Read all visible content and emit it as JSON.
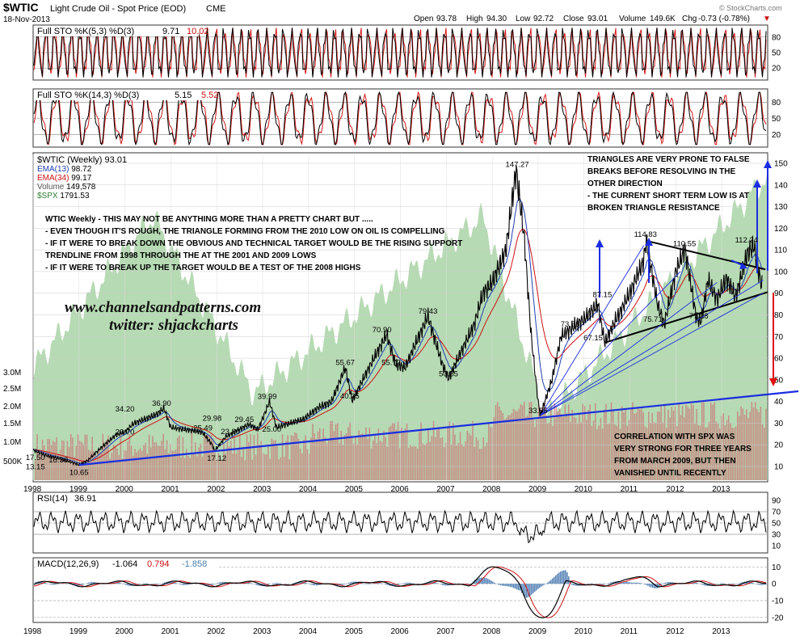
{
  "header": {
    "symbol": "$WTIC",
    "name": "Light Crude Oil - Spot Price (EOD)",
    "exchange": "CME",
    "date": "18-Nov-2013",
    "watermark": "© StockCharts.com",
    "quote": {
      "open_label": "Open",
      "open": "93.78",
      "high_label": "High",
      "high": "94.30",
      "low_label": "Low",
      "low": "92.72",
      "close_label": "Close",
      "close": "93.01",
      "volume_label": "Volume",
      "volume": "149.6K",
      "chg_label": "Chg",
      "chg": "-0.73 (-0.78%)"
    }
  },
  "colors": {
    "price": "#000000",
    "ema_fast": "#1f3fb0",
    "ema_slow": "#cc1111",
    "spx_fill": "#a9d3a6",
    "volume": "#c97a7a",
    "trendline": "#1a2ee0",
    "arrow_up": "#1a2ee0",
    "arrow_down": "#e01010",
    "macd_hist": "#5b86b8",
    "sto_d": "#d21a1a"
  },
  "chart_data": [
    {
      "panel": "sto1",
      "type": "line",
      "title": "Full STO %K(5,3) %D(3)",
      "k_value": "9.71",
      "d_value": "10.02",
      "y_ticks": [
        "80",
        "50",
        "20"
      ],
      "ylim": [
        0,
        100
      ]
    },
    {
      "panel": "sto2",
      "type": "line",
      "title": "Full STO %K(14,3) %D(3)",
      "k_value": "5.15",
      "d_value": "5.52",
      "y_ticks": [
        "80",
        "50",
        "20"
      ],
      "ylim": [
        0,
        100
      ]
    },
    {
      "panel": "price",
      "type": "line",
      "title": "$WTIC (Weekly)",
      "title_value": "93.01",
      "legend": [
        {
          "name": "$WTIC (Weekly)",
          "value": "93.01",
          "color": "#000000"
        },
        {
          "name": "EMA(13)",
          "value": "98.72",
          "color": "#1f3fb0"
        },
        {
          "name": "EMA(34)",
          "value": "99.17",
          "color": "#cc1111"
        },
        {
          "name": "Volume",
          "value": "149,578",
          "color": "#555555"
        },
        {
          "name": "$SPX",
          "value": "1791.53",
          "color": "#2e7d32"
        }
      ],
      "x_ticks": [
        "1998",
        "1999",
        "2000",
        "2001",
        "2002",
        "2003",
        "2004",
        "2005",
        "2006",
        "2007",
        "2008",
        "2009",
        "2010",
        "2011",
        "2012",
        "2013"
      ],
      "y_ticks": [
        "150",
        "140",
        "130",
        "120",
        "110",
        "100",
        "90",
        "80",
        "70",
        "60",
        "50",
        "40",
        "30",
        "20",
        "10"
      ],
      "volume_ticks": [
        "3.0M",
        "2.5M",
        "2.0M",
        "1.5M",
        "1.0M",
        "500K"
      ],
      "ylim": [
        0,
        155
      ],
      "price_points": [
        [
          1998.0,
          17.5
        ],
        [
          1998.3,
          15.0
        ],
        [
          1998.6,
          13.5
        ],
        [
          1998.9,
          11.5
        ],
        [
          1999.0,
          10.65
        ],
        [
          1999.2,
          13.0
        ],
        [
          1999.5,
          19.0
        ],
        [
          1999.8,
          24.5
        ],
        [
          2000.0,
          26.0
        ],
        [
          2000.2,
          30.0
        ],
        [
          2000.45,
          32.0
        ],
        [
          2000.7,
          34.2
        ],
        [
          2000.85,
          36.9
        ],
        [
          2001.0,
          28.0
        ],
        [
          2001.3,
          27.0
        ],
        [
          2001.5,
          26.5
        ],
        [
          2001.7,
          25.49
        ],
        [
          2001.9,
          20.0
        ],
        [
          2001.95,
          17.12
        ],
        [
          2002.2,
          23.8
        ],
        [
          2002.4,
          26.0
        ],
        [
          2002.7,
          29.45
        ],
        [
          2002.9,
          27.0
        ],
        [
          2003.15,
          39.99
        ],
        [
          2003.3,
          28.0
        ],
        [
          2003.6,
          30.0
        ],
        [
          2003.9,
          32.0
        ],
        [
          2004.2,
          37.0
        ],
        [
          2004.5,
          40.0
        ],
        [
          2004.8,
          55.67
        ],
        [
          2004.95,
          40.25
        ],
        [
          2005.3,
          55.0
        ],
        [
          2005.7,
          70.9
        ],
        [
          2005.9,
          57.0
        ],
        [
          2006.1,
          55.72
        ],
        [
          2006.4,
          70.0
        ],
        [
          2006.6,
          79.43
        ],
        [
          2006.9,
          58.0
        ],
        [
          2007.05,
          50.55
        ],
        [
          2007.3,
          62.0
        ],
        [
          2007.6,
          75.0
        ],
        [
          2007.8,
          90.0
        ],
        [
          2008.0,
          95.0
        ],
        [
          2008.3,
          110.0
        ],
        [
          2008.52,
          147.27
        ],
        [
          2008.7,
          115.0
        ],
        [
          2008.85,
          70.0
        ],
        [
          2009.0,
          40.0
        ],
        [
          2009.05,
          33.55
        ],
        [
          2009.3,
          50.0
        ],
        [
          2009.5,
          70.0
        ],
        [
          2009.8,
          75.0
        ],
        [
          2010.0,
          78.0
        ],
        [
          2010.3,
          85.0
        ],
        [
          2010.45,
          67.15
        ],
        [
          2010.7,
          78.0
        ],
        [
          2010.95,
          88.0
        ],
        [
          2011.3,
          105.0
        ],
        [
          2011.35,
          114.83
        ],
        [
          2011.6,
          85.0
        ],
        [
          2011.75,
          75.71
        ],
        [
          2012.0,
          100.0
        ],
        [
          2012.2,
          110.55
        ],
        [
          2012.45,
          78.0
        ],
        [
          2012.55,
          77.28
        ],
        [
          2012.7,
          96.0
        ],
        [
          2012.9,
          87.0
        ],
        [
          2013.1,
          97.0
        ],
        [
          2013.3,
          88.0
        ],
        [
          2013.55,
          108.0
        ],
        [
          2013.7,
          112.24
        ],
        [
          2013.8,
          100.0
        ],
        [
          2013.88,
          93.01
        ]
      ],
      "price_labels": [
        {
          "x": 1998.05,
          "y": 17.5,
          "text": "17.50"
        },
        {
          "x": 1998.55,
          "y": 16.36,
          "text": "16.36"
        },
        {
          "x": 1998.05,
          "y": 13.15,
          "text": "13.15"
        },
        {
          "x": 1999.0,
          "y": 10.65,
          "text": "10.65"
        },
        {
          "x": 2000.0,
          "y": 23.7,
          "text": "23.70"
        },
        {
          "x": 2000.0,
          "y": 34.2,
          "text": "34.20"
        },
        {
          "x": 2000.8,
          "y": 36.9,
          "text": "36.90"
        },
        {
          "x": 2001.7,
          "y": 25.49,
          "text": "25.49"
        },
        {
          "x": 2001.9,
          "y": 29.98,
          "text": "29.98"
        },
        {
          "x": 2002.0,
          "y": 17.12,
          "text": "17.12"
        },
        {
          "x": 2002.3,
          "y": 23.8,
          "text": "23.80"
        },
        {
          "x": 2002.6,
          "y": 29.45,
          "text": "29.45"
        },
        {
          "x": 2003.1,
          "y": 39.99,
          "text": "39.99"
        },
        {
          "x": 2003.2,
          "y": 25.0,
          "text": "25.00"
        },
        {
          "x": 2004.9,
          "y": 40.25,
          "text": "40.25"
        },
        {
          "x": 2004.8,
          "y": 55.67,
          "text": "55.67"
        },
        {
          "x": 2005.8,
          "y": 55.72,
          "text": "55.72"
        },
        {
          "x": 2005.6,
          "y": 70.9,
          "text": "70.90"
        },
        {
          "x": 2006.6,
          "y": 79.43,
          "text": "79.43"
        },
        {
          "x": 2007.05,
          "y": 50.55,
          "text": "50.55"
        },
        {
          "x": 2008.5,
          "y": 147.27,
          "text": "147.27"
        },
        {
          "x": 2009.0,
          "y": 33.55,
          "text": "33.55"
        },
        {
          "x": 2009.7,
          "y": 73.38,
          "text": "73.38"
        },
        {
          "x": 2010.2,
          "y": 67.15,
          "text": "67.15"
        },
        {
          "x": 2010.4,
          "y": 87.15,
          "text": "87.15"
        },
        {
          "x": 2011.3,
          "y": 114.83,
          "text": "114.83"
        },
        {
          "x": 2011.5,
          "y": 75.71,
          "text": "75.71"
        },
        {
          "x": 2012.15,
          "y": 110.55,
          "text": "110.55"
        },
        {
          "x": 2012.5,
          "y": 77.28,
          "text": "77.28"
        },
        {
          "x": 2013.5,
          "y": 112.24,
          "text": "112.24"
        }
      ]
    },
    {
      "panel": "rsi",
      "type": "line",
      "title": "RSI(14)",
      "value": "36.91",
      "y_ticks": [
        "90",
        "70",
        "50",
        "30",
        "10"
      ],
      "ylim": [
        0,
        100
      ]
    },
    {
      "panel": "macd",
      "type": "line",
      "title": "MACD(12,26,9)",
      "macd_value": "-1.064",
      "signal_value": "0.794",
      "hist_value": "-1.858",
      "y_ticks": [
        "10",
        "0",
        "-10",
        "-20"
      ],
      "ylim": [
        -22,
        14
      ],
      "x_ticks": [
        "1998",
        "1999",
        "2000",
        "2001",
        "2002",
        "2003",
        "2004",
        "2005",
        "2006",
        "2007",
        "2008",
        "2009",
        "2010",
        "2011",
        "2012",
        "2013"
      ]
    }
  ],
  "annotations": {
    "intro": [
      "WTIC Weekly - THIS MAY NOT BE ANYTHING MORE THAN A PRETTY CHART BUT .....",
      "- EVEN THOUGH IT'S ROUGH, THE TRIANGLE FORMING FROM THE 2010 LOW ON OIL IS COMPELLING",
      "- IF IT WERE TO BREAK DOWN THE OBVIOUS AND TECHNICAL TARGET WOULD BE THE RISING SUPPORT",
      "TRENDLINE FROM 1998 THROUGH THE AT THE 2001 AND 2009 LOWS",
      "- IF IT WERE TO BREAK UP THE TARGET WOULD BE A TEST OF THE 2008 HIGHS"
    ],
    "triangles": [
      "TRIANGLES ARE VERY PRONE TO FALSE",
      "BREAKS BEFORE RESOLVING IN THE",
      "OTHER DIRECTION",
      "- THE CURRENT SHORT TERM LOW IS AT",
      "BROKEN TRIANGLE RESISTANCE"
    ],
    "correlation": [
      "CORRELATION WITH SPX WAS",
      "VERY STRONG FOR THREE YEARS",
      "FROM MARCH 2009, BUT THEN",
      "VANISHED UNTIL RECENTLY"
    ],
    "website": "www.channelsandpatterns.com",
    "twitter": "twitter: shjackcharts"
  }
}
